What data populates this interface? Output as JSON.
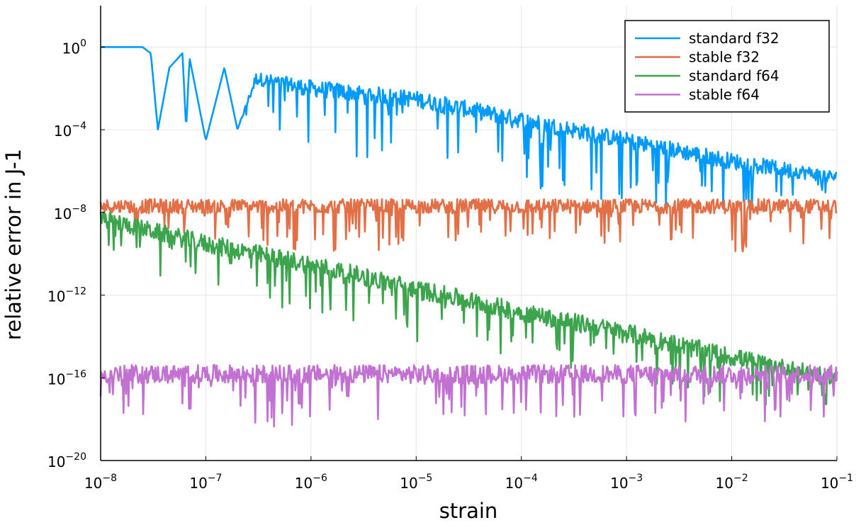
{
  "chart_data": {
    "type": "line",
    "xlabel": "strain",
    "ylabel": "relative error in J-1",
    "xscale": "log",
    "yscale": "log",
    "xlim": [
      1e-08,
      0.1
    ],
    "ylim": [
      1e-20,
      100.0
    ],
    "grid": true,
    "legend_position": "top-right",
    "x_ticks": [
      {
        "base": "10",
        "exp": "−8"
      },
      {
        "base": "10",
        "exp": "−7"
      },
      {
        "base": "10",
        "exp": "−6"
      },
      {
        "base": "10",
        "exp": "−5"
      },
      {
        "base": "10",
        "exp": "−4"
      },
      {
        "base": "10",
        "exp": "−3"
      },
      {
        "base": "10",
        "exp": "−2"
      },
      {
        "base": "10",
        "exp": "−1"
      }
    ],
    "y_ticks": [
      {
        "base": "10",
        "exp": "0"
      },
      {
        "base": "10",
        "exp": "−4"
      },
      {
        "base": "10",
        "exp": "−8"
      },
      {
        "base": "10",
        "exp": "−12"
      },
      {
        "base": "10",
        "exp": "−16"
      },
      {
        "base": "10",
        "exp": "−20"
      }
    ],
    "series": [
      {
        "name": "standard f32",
        "color": "#009AFA",
        "x": [
          1e-08,
          2.5e-08,
          3e-08,
          3.5e-08,
          4.5e-08,
          6e-08,
          6.5e-08,
          7e-08,
          1e-07,
          1.5e-07,
          2e-07,
          3e-07,
          1e-06,
          1e-05,
          0.0001,
          0.001,
          0.01,
          0.1
        ],
        "values": [
          1,
          1,
          0.5,
          0.0001,
          0.1,
          0.5,
          0.0001,
          0.3,
          3e-05,
          0.1,
          0.0001,
          0.03,
          0.01,
          0.003,
          0.0003,
          3e-05,
          3e-06,
          5e-07
        ],
        "noise_low": [
          0,
          0,
          0,
          0,
          0,
          0,
          0,
          0,
          0,
          0,
          0,
          2,
          3,
          3.2,
          3.4,
          3.5,
          2.5,
          1.5
        ],
        "noise_high": [
          0,
          0,
          0,
          0,
          0,
          0,
          0,
          0,
          0,
          0,
          0,
          0.3,
          0.4,
          0.4,
          0.4,
          0.4,
          0.4,
          0.3
        ]
      },
      {
        "name": "stable f32",
        "color": "#E26F46",
        "x": [
          1e-08,
          1e-07,
          1e-06,
          1e-05,
          0.0001,
          0.001,
          0.01,
          0.1
        ],
        "values": [
          2e-08,
          2e-08,
          2e-08,
          2e-08,
          2e-08,
          2e-08,
          2e-08,
          2e-08
        ],
        "noise_low": [
          1.3,
          1.5,
          2.6,
          2,
          1.6,
          2,
          2.4,
          1.7
        ],
        "noise_high": [
          0.35,
          0.35,
          0.35,
          0.35,
          0.35,
          0.35,
          0.35,
          0.35
        ]
      },
      {
        "name": "standard f64",
        "color": "#3DA44E",
        "x": [
          1e-08,
          1e-07,
          1e-06,
          1e-05,
          0.0001,
          0.001,
          0.01,
          0.1
        ],
        "values": [
          5e-09,
          3e-10,
          3e-11,
          2e-12,
          1.5e-13,
          1.5e-14,
          1e-15,
          1e-16
        ],
        "noise_low": [
          2,
          2.2,
          2.5,
          2.6,
          2.4,
          2.5,
          2.3,
          1.3
        ],
        "noise_high": [
          0.4,
          0.45,
          0.45,
          0.45,
          0.45,
          0.45,
          0.45,
          0.35
        ]
      },
      {
        "name": "stable f64",
        "color": "#C271D2",
        "x": [
          1e-08,
          1e-07,
          1e-06,
          1e-05,
          0.0001,
          0.001,
          0.01,
          0.1
        ],
        "values": [
          1.5e-16,
          1.5e-16,
          1.5e-16,
          1.5e-16,
          1.5e-16,
          1.5e-16,
          1.5e-16,
          1.5e-16
        ],
        "noise_low": [
          1.8,
          2.4,
          2.6,
          2.2,
          2,
          2.3,
          2.4,
          2.6
        ],
        "noise_high": [
          0.45,
          0.45,
          0.45,
          0.45,
          0.45,
          0.45,
          0.45,
          0.45
        ]
      }
    ]
  }
}
